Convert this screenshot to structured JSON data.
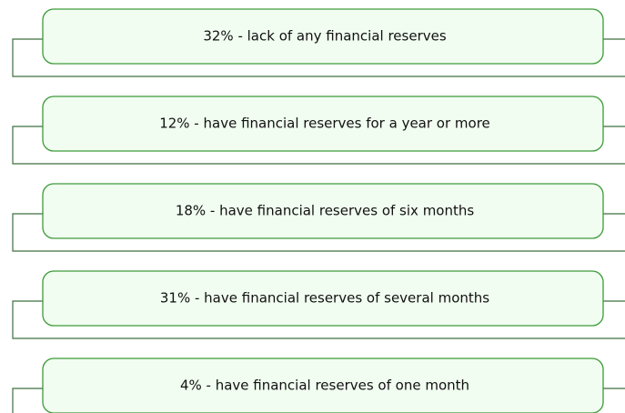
{
  "items": [
    {
      "text": "32% - lack of any financial reserves"
    },
    {
      "text": "12% - have financial reserves for a year or more"
    },
    {
      "text": "18% - have financial reserves of six months"
    },
    {
      "text": "31% - have financial reserves of several months"
    },
    {
      "text": "4% - have financial reserves of one month"
    }
  ]
}
